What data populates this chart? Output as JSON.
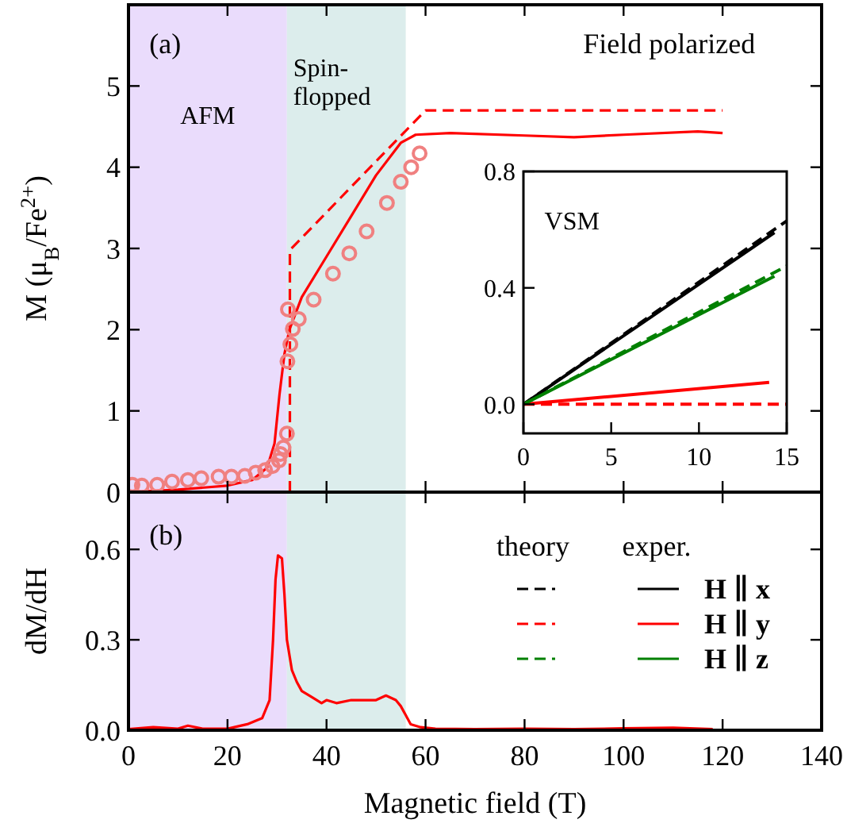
{
  "chart_data": [
    {
      "type": "line",
      "annotations": [
        "(a)",
        "Field polarized"
      ],
      "ylabel": "M (μ$_{B}$/Fe$^{2+}$)",
      "xlim": [
        0,
        140
      ],
      "xticks": [
        0,
        20,
        40,
        60,
        80,
        100,
        120,
        140
      ],
      "ylim": [
        0,
        6
      ],
      "yticks": [
        0,
        1,
        2,
        3,
        4,
        5
      ],
      "tick_labels": "y",
      "bands": [
        {
          "axis": "x",
          "from": 0,
          "to": 32,
          "label": "AFM",
          "color": "#eadcfc"
        },
        {
          "axis": "x",
          "from": 32,
          "to": 56,
          "label": "Spin-\nflopped",
          "color": "#dcedec"
        }
      ],
      "series": [
        {
          "type": "line",
          "color": "#ff0000",
          "line_style": "dashed",
          "x": [
            32.6,
            32.6,
            60,
            120
          ],
          "values": [
            0,
            2.98,
            4.7,
            4.7
          ]
        },
        {
          "type": "line",
          "color": "#ff0000",
          "line_style": "solid",
          "x": [
            0,
            10,
            20,
            25,
            28,
            29.5,
            30.5,
            31.5,
            32.5,
            35,
            40,
            45,
            50,
            55,
            58,
            65,
            80,
            90,
            100,
            115,
            120
          ],
          "values": [
            0,
            0.03,
            0.08,
            0.15,
            0.3,
            0.6,
            1.2,
            1.7,
            2.0,
            2.4,
            2.9,
            3.4,
            3.9,
            4.3,
            4.4,
            4.42,
            4.39,
            4.37,
            4.4,
            4.44,
            4.42
          ]
        },
        {
          "type": "scatter",
          "marker": "circle",
          "color": "#f08080",
          "x": [
            0.8,
            2.7,
            5.8,
            8.8,
            12.0,
            14.7,
            18.2,
            20.8,
            23.5,
            25.7,
            27.6,
            29.1,
            30.4,
            30.7,
            31.3,
            32.0,
            32.1,
            32.7,
            33.2,
            32.2,
            34.4,
            37.4,
            41.3,
            44.6,
            48.1,
            52.2,
            55.0,
            57.1,
            58.8
          ],
          "values": [
            0.09,
            0.08,
            0.09,
            0.13,
            0.15,
            0.17,
            0.19,
            0.19,
            0.2,
            0.24,
            0.27,
            0.32,
            0.39,
            0.47,
            0.55,
            0.72,
            1.61,
            1.82,
            2.01,
            2.25,
            2.13,
            2.37,
            2.69,
            2.94,
            3.21,
            3.56,
            3.82,
            4.0,
            4.17
          ]
        }
      ]
    },
    {
      "type": "line",
      "annotations": [
        "VSM",
        "theory",
        "exper."
      ],
      "xlim": [
        0,
        15
      ],
      "xticks": [
        0,
        5,
        10,
        15
      ],
      "ylim": [
        -0.1,
        0.8
      ],
      "yticks": [
        {
          "value": 0,
          "label": "0.0"
        },
        {
          "value": 0.4,
          "label": "0.4"
        },
        {
          "value": 0.8,
          "label": "0.8"
        }
      ],
      "legend": "bottom",
      "series": [
        {
          "type": "line",
          "color": "#000000",
          "line_style": "dashed",
          "x": [
            0,
            15
          ],
          "values": [
            0,
            0.63
          ]
        },
        {
          "type": "line",
          "color": "#ff0000",
          "line_style": "dashed",
          "x": [
            0,
            15
          ],
          "values": [
            0,
            0
          ]
        },
        {
          "type": "line",
          "color": "#008000",
          "line_style": "dashed",
          "x": [
            0,
            15
          ],
          "values": [
            0,
            0.475
          ]
        },
        {
          "type": "line",
          "name": "H ∥ x",
          "color": "#000000",
          "line_style": "solid",
          "x": [
            0,
            14.3
          ],
          "values": [
            0,
            0.59
          ]
        },
        {
          "type": "line",
          "name": "H ∥ y",
          "color": "#ff0000",
          "line_style": "solid",
          "x": [
            0,
            14
          ],
          "values": [
            0,
            0.075
          ]
        },
        {
          "type": "line",
          "name": "H ∥ z",
          "color": "#008000",
          "line_style": "solid",
          "x": [
            0,
            14.3
          ],
          "values": [
            0,
            0.44
          ]
        }
      ]
    },
    {
      "type": "line",
      "annotations": [
        "(b)"
      ],
      "xlabel": "Magnetic field (T)",
      "ylabel": "dM/dH",
      "xlim": [
        0,
        140
      ],
      "xticks": [
        0,
        20,
        40,
        60,
        80,
        100,
        120,
        140
      ],
      "ylim": [
        0,
        0.79
      ],
      "yticks": [
        {
          "value": 0,
          "label": "0.0"
        },
        {
          "value": 0.3,
          "label": "0.3"
        },
        {
          "value": 0.6,
          "label": "0.6"
        }
      ],
      "bands": [
        {
          "axis": "x",
          "from": 0,
          "to": 32,
          "color": "#eadcfc"
        },
        {
          "axis": "x",
          "from": 32,
          "to": 56,
          "color": "#dcedec"
        }
      ],
      "series": [
        {
          "type": "line",
          "color": "#ff0000",
          "line_style": "solid",
          "x": [
            0,
            5,
            10,
            12,
            15,
            20,
            24,
            27,
            28.5,
            29.2,
            29.7,
            30.2,
            31,
            31.5,
            32,
            33,
            34,
            35,
            37,
            39,
            40,
            42,
            45,
            48,
            50,
            52,
            54,
            55,
            56,
            57,
            59,
            62,
            70,
            80,
            90,
            100,
            110,
            118
          ],
          "values": [
            0.004,
            0.01,
            0.005,
            0.015,
            0.005,
            0.005,
            0.02,
            0.04,
            0.1,
            0.3,
            0.5,
            0.58,
            0.57,
            0.45,
            0.3,
            0.2,
            0.16,
            0.13,
            0.11,
            0.09,
            0.1,
            0.09,
            0.1,
            0.1,
            0.1,
            0.115,
            0.1,
            0.08,
            0.05,
            0.02,
            0.01,
            0.005,
            0.004,
            0.005,
            0.004,
            0.006,
            0.008,
            0.004
          ]
        }
      ]
    }
  ]
}
